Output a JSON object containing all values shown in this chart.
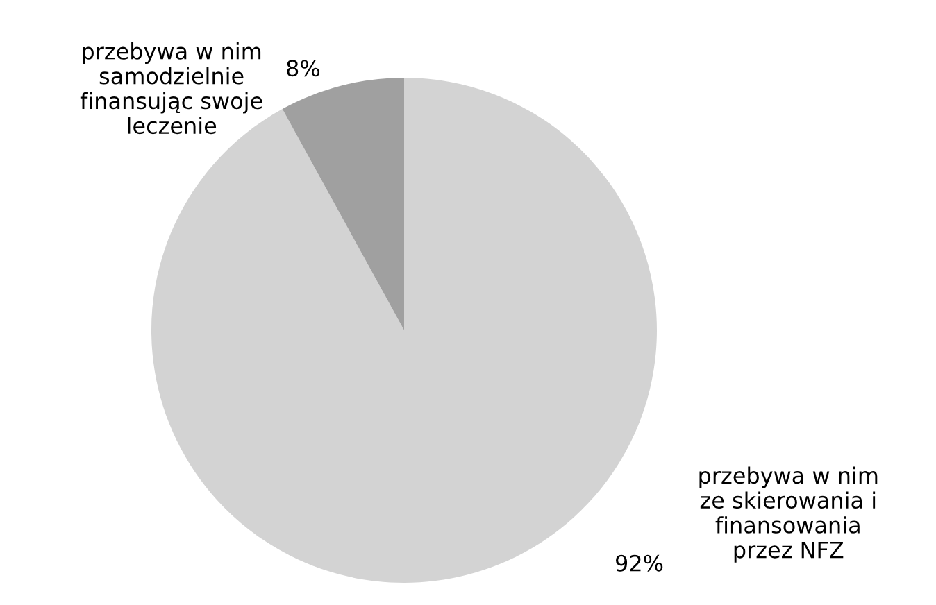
{
  "chart_data": {
    "type": "pie",
    "categories": [
      "przebywa w nim\nze skierowania i\nfinansowania\nprzez NFZ",
      "przebywa w nim\nsamodzielnie\nfinansując swoje\nleczenie"
    ],
    "values": [
      92,
      8
    ],
    "value_labels": [
      "92%",
      "8%"
    ],
    "colors": [
      "#d3d3d3",
      "#a0a0a0"
    ],
    "legend": false
  }
}
